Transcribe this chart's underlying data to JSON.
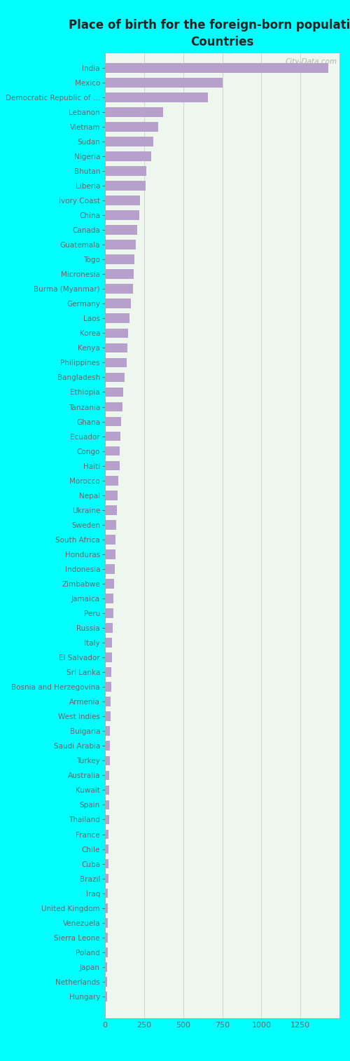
{
  "title": "Place of birth for the foreign-born population -\nCountries",
  "background_color": "#00ffff",
  "plot_bg_color": "#eef7ee",
  "bar_color": "#b8a0cc",
  "categories": [
    "India",
    "Mexico",
    "Democratic Republic of ...",
    "Lebanon",
    "Vietnam",
    "Sudan",
    "Nigeria",
    "Bhutan",
    "Liberia",
    "Ivory Coast",
    "China",
    "Canada",
    "Guatemala",
    "Togo",
    "Micronesia",
    "Burma (Myanmar)",
    "Germany",
    "Laos",
    "Korea",
    "Kenya",
    "Philippines",
    "Bangladesh",
    "Ethiopia",
    "Tanzania",
    "Ghana",
    "Ecuador",
    "Congo",
    "Haiti",
    "Morocco",
    "Nepal",
    "Ukraine",
    "Sweden",
    "South Africa",
    "Honduras",
    "Indonesia",
    "Zimbabwe",
    "Jamaica",
    "Peru",
    "Russia",
    "Italy",
    "El Salvador",
    "Sri Lanka",
    "Bosnia and Herzegovina",
    "Armenia",
    "West Indies",
    "Bulgaria",
    "Saudi Arabia",
    "Turkey",
    "Australia",
    "Kuwait",
    "Spain",
    "Thailand",
    "France",
    "Chile",
    "Cuba",
    "Brazil",
    "Iraq",
    "United Kingdom",
    "Venezuela",
    "Sierra Leone",
    "Poland",
    "Japan",
    "Netherlands",
    "Hungary"
  ],
  "values": [
    1430,
    750,
    660,
    370,
    340,
    310,
    295,
    265,
    258,
    225,
    220,
    205,
    195,
    190,
    185,
    178,
    165,
    155,
    148,
    143,
    138,
    125,
    115,
    110,
    105,
    100,
    96,
    93,
    86,
    80,
    76,
    72,
    67,
    65,
    62,
    57,
    55,
    52,
    49,
    47,
    45,
    42,
    40,
    38,
    36,
    33,
    31,
    30,
    28,
    27,
    26,
    25,
    24,
    23,
    22,
    21,
    20,
    19,
    18,
    17,
    16,
    15,
    14,
    13
  ],
  "xlim_max": 1500,
  "xticks": [
    0,
    250,
    500,
    750,
    1000,
    1250
  ],
  "title_fontsize": 12,
  "label_fontsize": 7.5,
  "tick_fontsize": 8,
  "watermark": "City-Data.com",
  "empty_row_at_top": true
}
